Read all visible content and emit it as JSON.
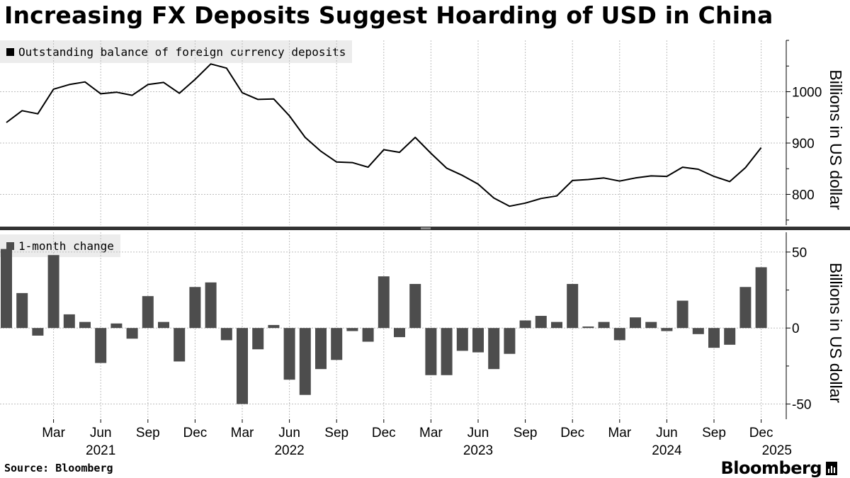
{
  "title": "Increasing FX Deposits Suggest Hoarding of USD in China",
  "source": "Source: Bloomberg",
  "brand": "Bloomberg",
  "brand_icon": "bloomberg-chart-icon",
  "colors": {
    "line": "#000000",
    "bar": "#4d4d4d",
    "grid": "#bdbdbd",
    "divider": "#333333",
    "legend_bg": "#ececec"
  },
  "x_axis": {
    "month_ticks": [
      {
        "date": "2021-03",
        "label": "Mar"
      },
      {
        "date": "2021-06",
        "label": "Jun"
      },
      {
        "date": "2021-09",
        "label": "Sep"
      },
      {
        "date": "2021-12",
        "label": "Dec"
      },
      {
        "date": "2022-03",
        "label": "Mar"
      },
      {
        "date": "2022-06",
        "label": "Jun"
      },
      {
        "date": "2022-09",
        "label": "Sep"
      },
      {
        "date": "2022-12",
        "label": "Dec"
      },
      {
        "date": "2023-03",
        "label": "Mar"
      },
      {
        "date": "2023-06",
        "label": "Jun"
      },
      {
        "date": "2023-09",
        "label": "Sep"
      },
      {
        "date": "2023-12",
        "label": "Dec"
      },
      {
        "date": "2024-03",
        "label": "Mar"
      },
      {
        "date": "2024-06",
        "label": "Jun"
      },
      {
        "date": "2024-09",
        "label": "Sep"
      },
      {
        "date": "2024-12",
        "label": "Dec"
      }
    ],
    "year_labels": [
      {
        "date": "2021-06",
        "label": "2021"
      },
      {
        "date": "2022-06",
        "label": "2022"
      },
      {
        "date": "2023-06",
        "label": "2023"
      },
      {
        "date": "2024-06",
        "label": "2024"
      },
      {
        "date": "2025-01",
        "label": "2025"
      }
    ]
  },
  "chart_data": [
    {
      "type": "line",
      "legend": "Outstanding balance of foreign currency deposits",
      "legend_placement": "top-left",
      "ylabel": "Billions in US dollar",
      "ylim": [
        740,
        1100
      ],
      "y_ticks": [
        800,
        900,
        1000
      ],
      "grid": true,
      "x": [
        "2020-12",
        "2021-01",
        "2021-02",
        "2021-03",
        "2021-04",
        "2021-05",
        "2021-06",
        "2021-07",
        "2021-08",
        "2021-09",
        "2021-10",
        "2021-11",
        "2021-12",
        "2022-01",
        "2022-02",
        "2022-03",
        "2022-04",
        "2022-05",
        "2022-06",
        "2022-07",
        "2022-08",
        "2022-09",
        "2022-10",
        "2022-11",
        "2022-12",
        "2023-01",
        "2023-02",
        "2023-03",
        "2023-04",
        "2023-05",
        "2023-06",
        "2023-07",
        "2023-08",
        "2023-09",
        "2023-10",
        "2023-11",
        "2023-12",
        "2024-01",
        "2024-02",
        "2024-03",
        "2024-04",
        "2024-05",
        "2024-06",
        "2024-07",
        "2024-08",
        "2024-09",
        "2024-10",
        "2024-11",
        "2024-12",
        "2025-01"
      ],
      "values": [
        940,
        963,
        957,
        1005,
        1014,
        1019,
        996,
        999,
        993,
        1014,
        1018,
        997,
        1024,
        1054,
        1046,
        998,
        985,
        986,
        953,
        911,
        884,
        863,
        862,
        853,
        887,
        882,
        911,
        880,
        851,
        837,
        820,
        793,
        777,
        783,
        792,
        797,
        827,
        829,
        832,
        826,
        832,
        836,
        835,
        853,
        849,
        835,
        825,
        852,
        891,
        null
      ]
    },
    {
      "type": "bar",
      "legend": "1-month change",
      "legend_placement": "top-left",
      "ylabel": "Billions in US dollar",
      "ylim": [
        -60,
        63
      ],
      "y_ticks": [
        -50,
        0,
        50
      ],
      "grid": true,
      "x": [
        "2020-12",
        "2021-01",
        "2021-02",
        "2021-03",
        "2021-04",
        "2021-05",
        "2021-06",
        "2021-07",
        "2021-08",
        "2021-09",
        "2021-10",
        "2021-11",
        "2021-12",
        "2022-01",
        "2022-02",
        "2022-03",
        "2022-04",
        "2022-05",
        "2022-06",
        "2022-07",
        "2022-08",
        "2022-09",
        "2022-10",
        "2022-11",
        "2022-12",
        "2023-01",
        "2023-02",
        "2023-03",
        "2023-04",
        "2023-05",
        "2023-06",
        "2023-07",
        "2023-08",
        "2023-09",
        "2023-10",
        "2023-11",
        "2023-12",
        "2024-01",
        "2024-02",
        "2024-03",
        "2024-04",
        "2024-05",
        "2024-06",
        "2024-07",
        "2024-08",
        "2024-09",
        "2024-10",
        "2024-11",
        "2024-12",
        "2025-01"
      ],
      "values": [
        52,
        23,
        -5,
        48,
        9,
        4,
        -23,
        3,
        -7,
        21,
        4,
        -22,
        27,
        30,
        -8,
        -50,
        -14,
        2,
        -34,
        -44,
        -27,
        -21,
        -2,
        -9,
        34,
        -6,
        29,
        -31,
        -31,
        -15,
        -16,
        -27,
        -17,
        5,
        8,
        4,
        29,
        1,
        4,
        -8,
        7,
        4,
        -2,
        18,
        -4,
        -13,
        -11,
        27,
        40,
        null
      ]
    }
  ]
}
